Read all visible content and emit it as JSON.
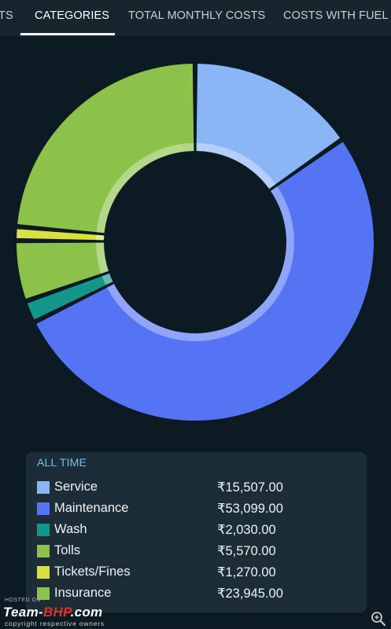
{
  "tabs": [
    {
      "label": "TS",
      "active": false
    },
    {
      "label": "CATEGORIES",
      "active": true
    },
    {
      "label": "TOTAL MONTHLY COSTS",
      "active": false
    },
    {
      "label": "COSTS WITH FUEL",
      "active": false
    }
  ],
  "chart_data": {
    "type": "pie",
    "variant": "donut",
    "title": "",
    "currency": "₹",
    "categories": [
      "Service",
      "Maintenance",
      "Wash",
      "Tolls",
      "Tickets/Fines",
      "Insurance"
    ],
    "values": [
      15507.0,
      53099.0,
      2030.0,
      5570.0,
      1270.0,
      23945.0
    ],
    "colors": [
      "#8ab6f7",
      "#5574f4",
      "#13978a",
      "#8dc24a",
      "#d9e23c",
      "#8dc24a"
    ]
  },
  "legend": {
    "header": "ALL TIME",
    "items": [
      {
        "label": "Service",
        "value": "₹15,507.00",
        "color": "#8ab6f7"
      },
      {
        "label": "Maintenance",
        "value": "₹53,099.00",
        "color": "#5574f4"
      },
      {
        "label": "Wash",
        "value": "₹2,030.00",
        "color": "#13978a"
      },
      {
        "label": "Tolls",
        "value": "₹5,570.00",
        "color": "#8dc24a"
      },
      {
        "label": "Tickets/Fines",
        "value": "₹1,270.00",
        "color": "#d9e23c"
      },
      {
        "label": "Insurance",
        "value": "₹23,945.00",
        "color": "#8dc24a"
      }
    ]
  },
  "watermark": {
    "hosted": "HOSTED ON :",
    "logo_main": "Team-",
    "logo_accent": "BHP",
    "logo_suffix": ".com",
    "copyright": "copyright respective owners"
  },
  "icons": {
    "zoom": "zoom-in-icon"
  }
}
